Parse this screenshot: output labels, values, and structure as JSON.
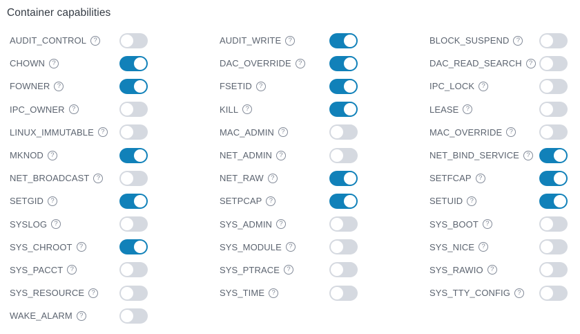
{
  "section": {
    "title": "Container capabilities"
  },
  "help_icon_glyph": "?",
  "colors": {
    "toggle_on": "#1181b9",
    "toggle_off_track": "#d5d9e0",
    "toggle_knob": "#ffffff",
    "label_text": "#5c6470",
    "title_text": "#343b44",
    "help_icon": "#828a98"
  },
  "capabilities": [
    {
      "label": "AUDIT_CONTROL",
      "enabled": false
    },
    {
      "label": "AUDIT_WRITE",
      "enabled": true
    },
    {
      "label": "BLOCK_SUSPEND",
      "enabled": false
    },
    {
      "label": "CHOWN",
      "enabled": true
    },
    {
      "label": "DAC_OVERRIDE",
      "enabled": true
    },
    {
      "label": "DAC_READ_SEARCH",
      "enabled": false
    },
    {
      "label": "FOWNER",
      "enabled": true
    },
    {
      "label": "FSETID",
      "enabled": true
    },
    {
      "label": "IPC_LOCK",
      "enabled": false
    },
    {
      "label": "IPC_OWNER",
      "enabled": false
    },
    {
      "label": "KILL",
      "enabled": true
    },
    {
      "label": "LEASE",
      "enabled": false
    },
    {
      "label": "LINUX_IMMUTABLE",
      "enabled": false
    },
    {
      "label": "MAC_ADMIN",
      "enabled": false
    },
    {
      "label": "MAC_OVERRIDE",
      "enabled": false
    },
    {
      "label": "MKNOD",
      "enabled": true
    },
    {
      "label": "NET_ADMIN",
      "enabled": false
    },
    {
      "label": "NET_BIND_SERVICE",
      "enabled": true
    },
    {
      "label": "NET_BROADCAST",
      "enabled": false
    },
    {
      "label": "NET_RAW",
      "enabled": true
    },
    {
      "label": "SETFCAP",
      "enabled": true
    },
    {
      "label": "SETGID",
      "enabled": true
    },
    {
      "label": "SETPCAP",
      "enabled": true
    },
    {
      "label": "SETUID",
      "enabled": true
    },
    {
      "label": "SYSLOG",
      "enabled": false
    },
    {
      "label": "SYS_ADMIN",
      "enabled": false
    },
    {
      "label": "SYS_BOOT",
      "enabled": false
    },
    {
      "label": "SYS_CHROOT",
      "enabled": true
    },
    {
      "label": "SYS_MODULE",
      "enabled": false
    },
    {
      "label": "SYS_NICE",
      "enabled": false
    },
    {
      "label": "SYS_PACCT",
      "enabled": false
    },
    {
      "label": "SYS_PTRACE",
      "enabled": false
    },
    {
      "label": "SYS_RAWIO",
      "enabled": false
    },
    {
      "label": "SYS_RESOURCE",
      "enabled": false
    },
    {
      "label": "SYS_TIME",
      "enabled": false
    },
    {
      "label": "SYS_TTY_CONFIG",
      "enabled": false
    },
    {
      "label": "WAKE_ALARM",
      "enabled": false
    }
  ]
}
